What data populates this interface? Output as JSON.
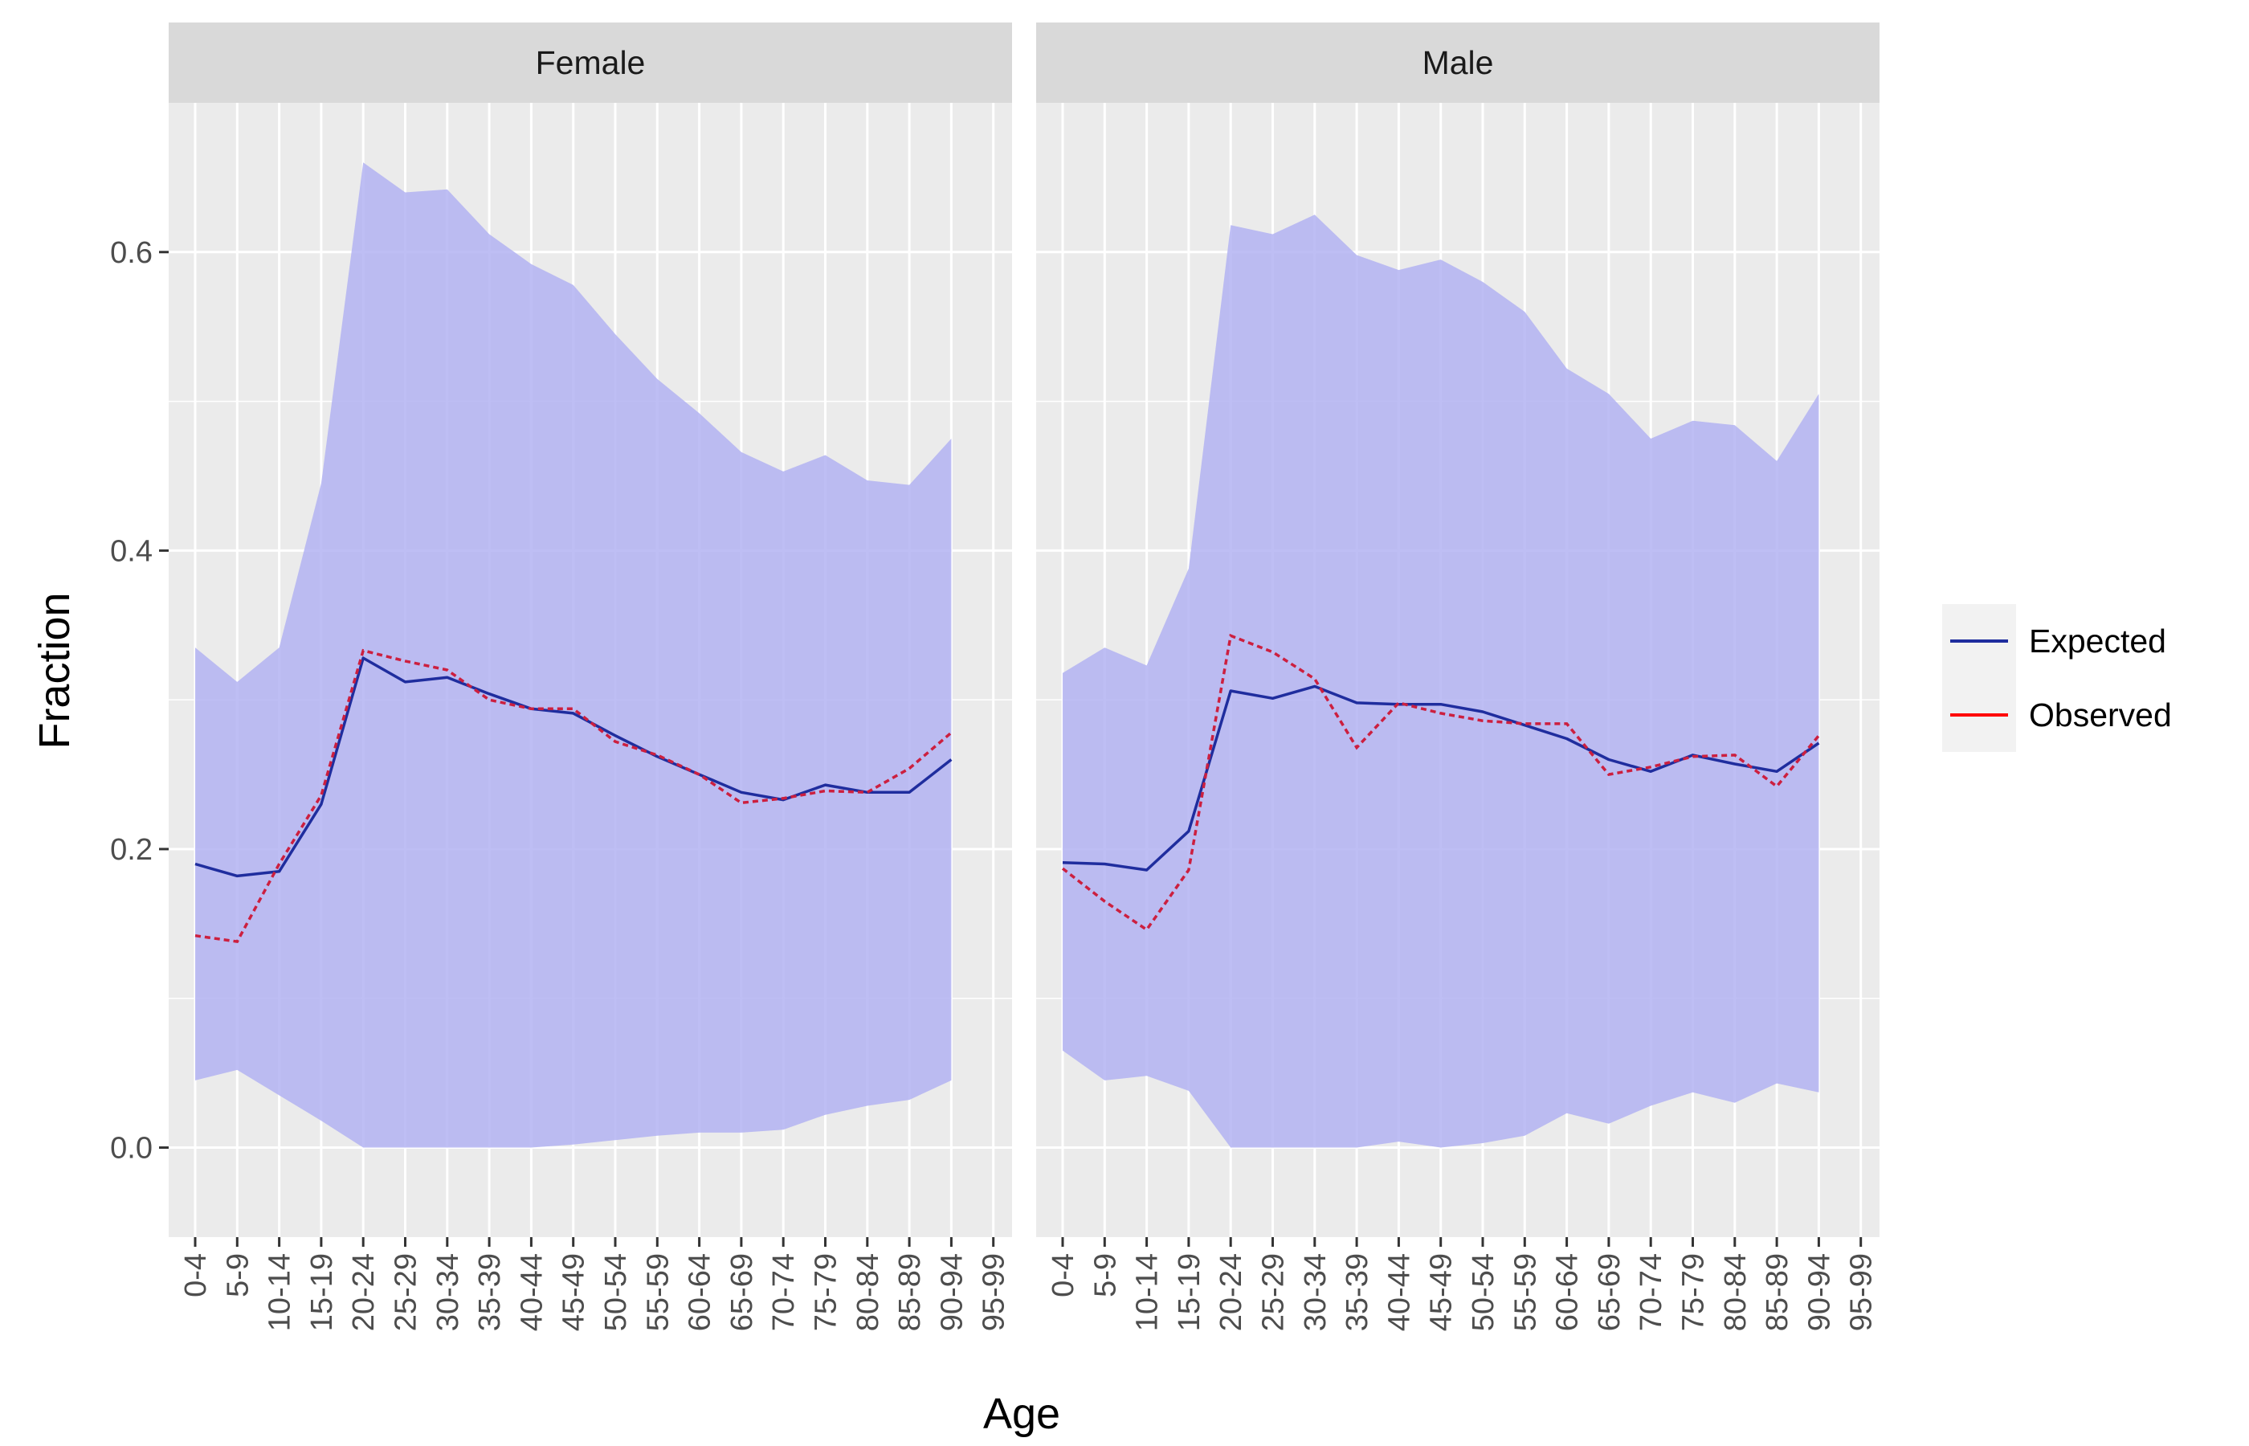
{
  "chart_data": {
    "type": "line",
    "xlabel": "Age",
    "ylabel": "Fraction",
    "ylim": [
      -0.06,
      0.7
    ],
    "yticks": [
      0.0,
      0.2,
      0.4,
      0.6
    ],
    "ytick_labels": [
      "0.0",
      "0.2",
      "0.4",
      "0.6"
    ],
    "grid": true,
    "legend_position": "right",
    "categories": [
      "0-4",
      "5-9",
      "10-14",
      "15-19",
      "20-24",
      "25-29",
      "30-34",
      "35-39",
      "40-44",
      "45-49",
      "50-54",
      "55-59",
      "60-64",
      "65-69",
      "70-74",
      "75-79",
      "80-84",
      "85-89",
      "90-94",
      "95-99"
    ],
    "legend": [
      {
        "name": "Expected",
        "color": "#1f2d9e"
      },
      {
        "name": "Observed",
        "color": "#ff0000"
      }
    ],
    "colors": {
      "band": "#b3b3f2",
      "expected": "#1f2d9e",
      "observed": "#cc1f3f",
      "panel_bg": "#ebebeb",
      "strip_bg": "#d9d9d9"
    },
    "panels": [
      {
        "label": "Female",
        "band_lower": [
          0.045,
          0.052,
          0.035,
          0.018,
          0.0,
          0.0,
          0.0,
          0.0,
          0.0,
          0.002,
          0.005,
          0.008,
          0.01,
          0.01,
          0.012,
          0.022,
          0.028,
          0.032,
          0.045
        ],
        "band_upper": [
          0.335,
          0.312,
          0.335,
          0.445,
          0.66,
          0.64,
          0.642,
          0.612,
          0.592,
          0.578,
          0.545,
          0.515,
          0.492,
          0.466,
          0.453,
          0.464,
          0.447,
          0.444,
          0.475
        ],
        "expected": [
          0.19,
          0.182,
          0.185,
          0.23,
          0.328,
          0.312,
          0.315,
          0.304,
          0.294,
          0.291,
          0.276,
          0.262,
          0.25,
          0.238,
          0.233,
          0.243,
          0.238,
          0.238,
          0.26
        ],
        "observed": [
          0.142,
          0.138,
          0.19,
          0.236,
          0.333,
          0.326,
          0.32,
          0.3,
          0.294,
          0.294,
          0.272,
          0.263,
          0.25,
          0.231,
          0.234,
          0.239,
          0.238,
          0.254,
          0.278
        ]
      },
      {
        "label": "Male",
        "band_lower": [
          0.065,
          0.045,
          0.048,
          0.038,
          0.0,
          0.0,
          0.0,
          0.0,
          0.004,
          0.0,
          0.003,
          0.008,
          0.023,
          0.016,
          0.028,
          0.037,
          0.03,
          0.043,
          0.037
        ],
        "band_upper": [
          0.318,
          0.335,
          0.323,
          0.388,
          0.618,
          0.612,
          0.625,
          0.598,
          0.588,
          0.595,
          0.58,
          0.56,
          0.522,
          0.505,
          0.475,
          0.487,
          0.484,
          0.46,
          0.505
        ],
        "expected": [
          0.191,
          0.19,
          0.186,
          0.212,
          0.306,
          0.301,
          0.309,
          0.298,
          0.297,
          0.297,
          0.292,
          0.283,
          0.274,
          0.26,
          0.252,
          0.263,
          0.257,
          0.252,
          0.271
        ],
        "observed": [
          0.187,
          0.165,
          0.146,
          0.186,
          0.343,
          0.332,
          0.314,
          0.268,
          0.298,
          0.291,
          0.286,
          0.284,
          0.284,
          0.25,
          0.255,
          0.262,
          0.263,
          0.242,
          0.276
        ]
      }
    ]
  }
}
